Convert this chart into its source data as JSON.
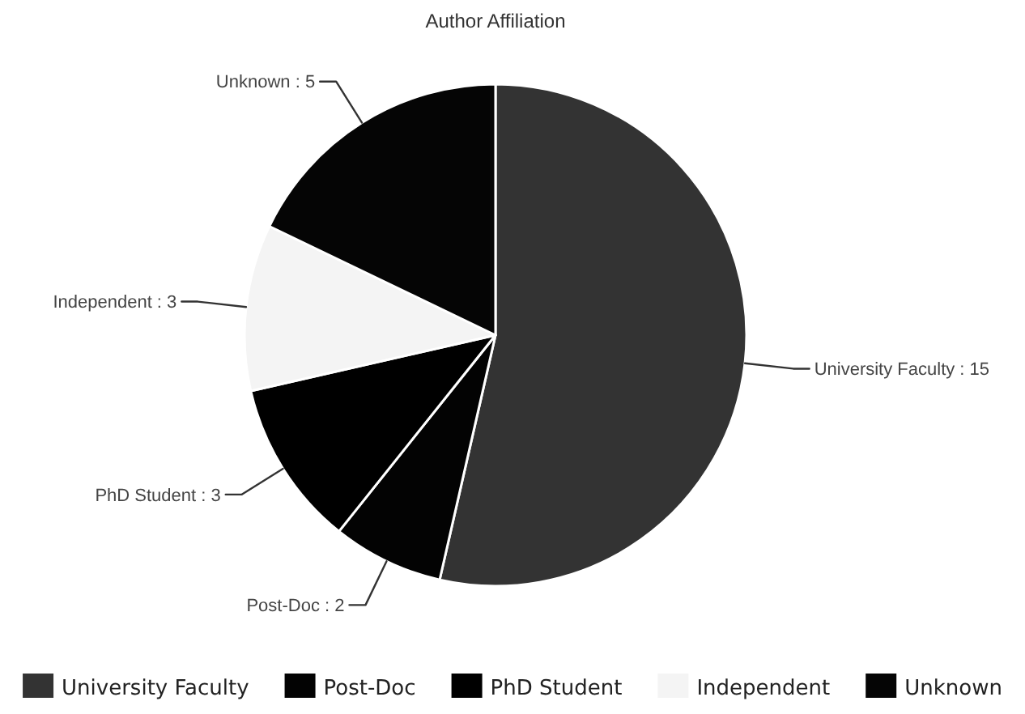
{
  "chart_data": {
    "type": "pie",
    "title": "Author Affiliation",
    "categories": [
      "University Faculty",
      "Post-Doc",
      "PhD Student",
      "Independent",
      "Unknown"
    ],
    "values": [
      15,
      2,
      3,
      3,
      5
    ],
    "value_labels": [
      "University Faculty : 15",
      "Post-Doc : 2",
      "PhD Student : 3",
      "Independent : 3",
      "Unknown : 5"
    ],
    "colors": [
      "#333333",
      "#030303",
      "#000000",
      "#f4f4f4",
      "#050505"
    ],
    "legend": "bottom"
  }
}
